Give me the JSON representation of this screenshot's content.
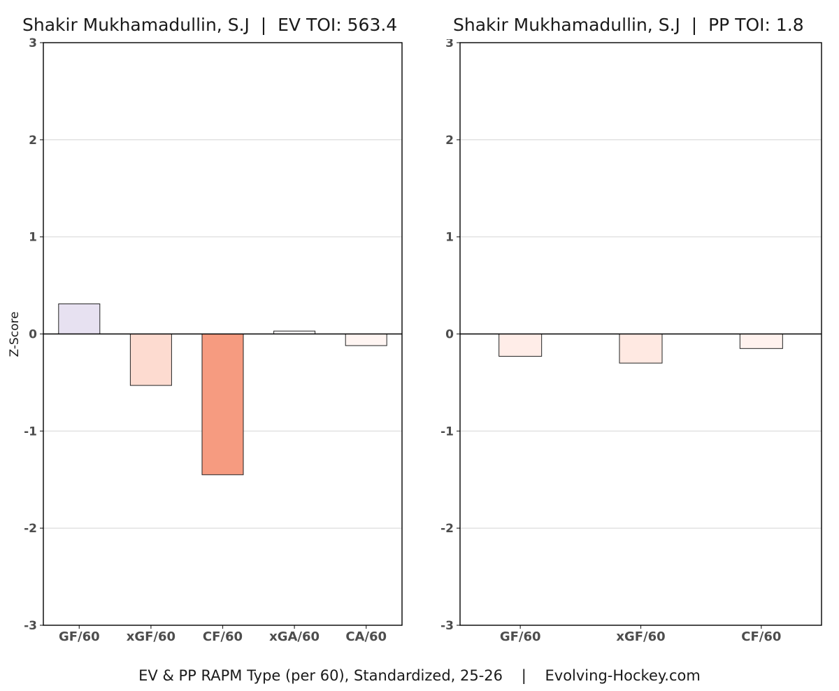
{
  "chart_data": [
    {
      "type": "bar",
      "title": "Shakir Mukhamadullin, S.J  |  EV TOI: 563.4",
      "ylabel": "Z-Score",
      "xlabel": "",
      "ylim": [
        -3,
        3
      ],
      "yticks": [
        "-3",
        "-2",
        "-1",
        "0",
        "1",
        "2",
        "3"
      ],
      "grid": true,
      "categories": [
        "GF/60",
        "xGF/60",
        "CF/60",
        "xGA/60",
        "CA/60"
      ],
      "values": [
        0.31,
        -0.53,
        -1.45,
        0.03,
        -0.12
      ],
      "colors": [
        "#e7e1f1",
        "#fddbd0",
        "#f69b80",
        "#fcfafc",
        "#fff5f2"
      ]
    },
    {
      "type": "bar",
      "title": "Shakir Mukhamadullin, S.J  |  PP TOI: 1.8",
      "ylabel": "",
      "xlabel": "",
      "ylim": [
        -3,
        3
      ],
      "yticks": [
        "-3",
        "-2",
        "-1",
        "0",
        "1",
        "2",
        "3"
      ],
      "grid": true,
      "categories": [
        "GF/60",
        "xGF/60",
        "CF/60"
      ],
      "values": [
        -0.23,
        -0.3,
        -0.15
      ],
      "colors": [
        "#ffede8",
        "#ffe9e2",
        "#fff2ee"
      ]
    }
  ],
  "caption": "EV & PP RAPM Type (per 60), Standardized, 25-26    |    Evolving-Hockey.com"
}
